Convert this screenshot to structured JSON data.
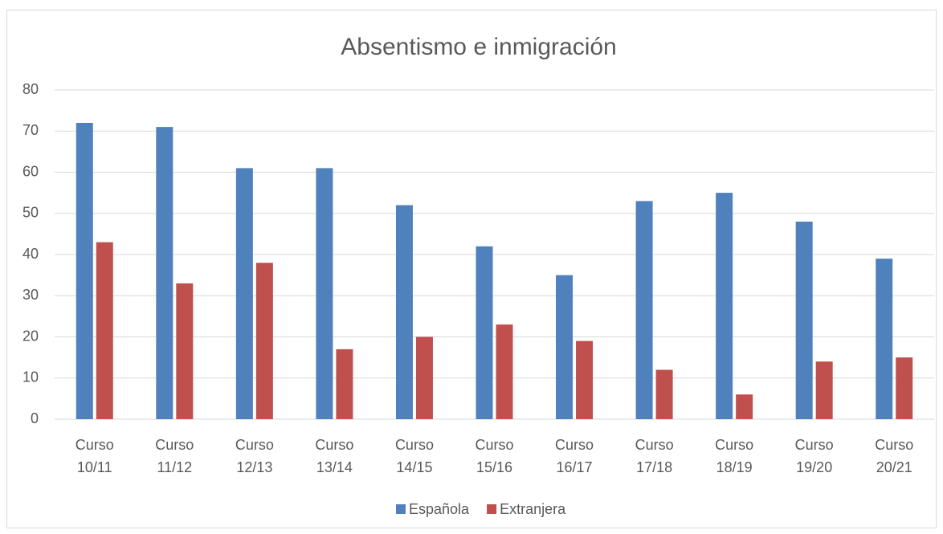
{
  "chart_data": {
    "type": "bar",
    "title": "Absentismo e inmigración",
    "categories": [
      "Curso 10/11",
      "Curso 11/12",
      "Curso 12/13",
      "Curso 13/14",
      "Curso 14/15",
      "Curso 15/16",
      "Curso 16/17",
      "Curso 17/18",
      "Curso 18/19",
      "Curso 19/20",
      "Curso 20/21"
    ],
    "series": [
      {
        "name": "Española",
        "color": "#4f81bd",
        "values": [
          72,
          71,
          61,
          61,
          52,
          42,
          35,
          53,
          55,
          48,
          39
        ]
      },
      {
        "name": "Extranjera",
        "color": "#c0504d",
        "values": [
          43,
          33,
          38,
          17,
          20,
          23,
          19,
          12,
          6,
          14,
          15
        ]
      }
    ],
    "ylim": [
      0,
      80
    ],
    "yticks": [
      0,
      10,
      20,
      30,
      40,
      50,
      60,
      70,
      80
    ],
    "grid": true,
    "legend": "bottom"
  }
}
